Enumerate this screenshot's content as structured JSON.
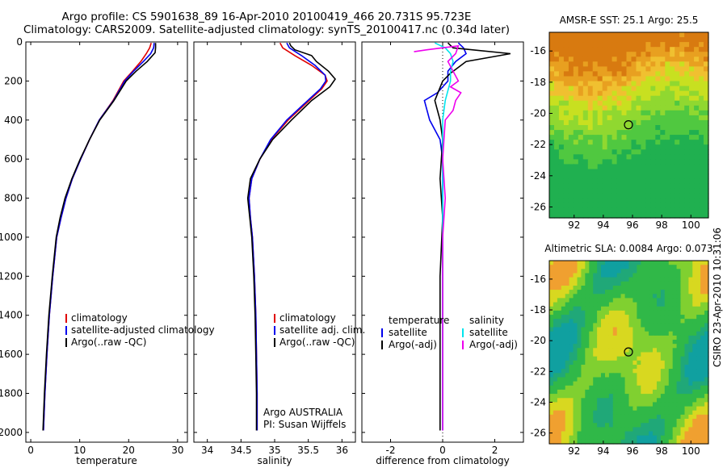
{
  "header": {
    "line1": "Argo profile: CS 5901638_89 16-Apr-2010 20100419_466 20.731S 95.723E",
    "line2": "Climatology: CARS2009. Satellite-adjusted climatology: synTS_20100417.nc (0.34d later)"
  },
  "colors": {
    "climatology": "#e00000",
    "satellite": "#0000ee",
    "argo": "#000000",
    "cyan": "#00e5ee",
    "magenta": "#ee00ee"
  },
  "chart_data": [
    {
      "type": "line",
      "xlabel": "temperature",
      "xlim": [
        -1,
        32
      ],
      "ylim": [
        2050,
        0
      ],
      "xticks": [
        0,
        10,
        20,
        30
      ],
      "yticks": [
        0,
        200,
        400,
        600,
        800,
        1000,
        1200,
        1400,
        1600,
        1800,
        2000
      ],
      "legend": [
        "climatology",
        "satellite-adjusted climatology",
        "Argo(..raw -QC)"
      ],
      "legend_position": "lower-right",
      "series": [
        {
          "name": "climatology",
          "color": "climatology",
          "points": [
            [
              24.6,
              5
            ],
            [
              24.3,
              30
            ],
            [
              23.6,
              60
            ],
            [
              22.5,
              100
            ],
            [
              20.8,
              150
            ],
            [
              19.0,
              200
            ],
            [
              16.8,
              300
            ],
            [
              14.0,
              400
            ],
            [
              12.0,
              500
            ],
            [
              10.2,
              600
            ],
            [
              8.5,
              700
            ],
            [
              7.2,
              800
            ],
            [
              6.2,
              900
            ],
            [
              5.3,
              1000
            ],
            [
              4.5,
              1200
            ],
            [
              3.8,
              1400
            ],
            [
              3.3,
              1600
            ],
            [
              2.9,
              1800
            ],
            [
              2.6,
              1990
            ]
          ]
        },
        {
          "name": "satellite-adjusted climatology",
          "color": "satellite",
          "points": [
            [
              25.2,
              5
            ],
            [
              25.1,
              30
            ],
            [
              24.5,
              60
            ],
            [
              23.0,
              100
            ],
            [
              21.0,
              150
            ],
            [
              19.2,
              200
            ],
            [
              16.9,
              300
            ],
            [
              14.0,
              400
            ],
            [
              12.0,
              500
            ],
            [
              10.2,
              600
            ],
            [
              8.5,
              700
            ],
            [
              7.2,
              800
            ],
            [
              6.2,
              900
            ],
            [
              5.3,
              1000
            ],
            [
              4.5,
              1200
            ],
            [
              3.8,
              1400
            ],
            [
              3.3,
              1600
            ],
            [
              2.9,
              1800
            ],
            [
              2.6,
              1990
            ]
          ]
        },
        {
          "name": "Argo(..raw -QC)",
          "color": "argo",
          "points": [
            [
              25.5,
              5
            ],
            [
              25.5,
              30
            ],
            [
              25.4,
              55
            ],
            [
              23.8,
              100
            ],
            [
              21.5,
              150
            ],
            [
              19.5,
              200
            ],
            [
              17.0,
              300
            ],
            [
              14.1,
              400
            ],
            [
              12.0,
              500
            ],
            [
              10.1,
              600
            ],
            [
              8.4,
              700
            ],
            [
              7.0,
              800
            ],
            [
              6.0,
              900
            ],
            [
              5.2,
              1000
            ],
            [
              4.4,
              1200
            ],
            [
              3.7,
              1400
            ],
            [
              3.2,
              1600
            ],
            [
              2.8,
              1800
            ],
            [
              2.5,
              1990
            ]
          ]
        }
      ]
    },
    {
      "type": "line",
      "xlabel": "salinity",
      "xlim": [
        33.8,
        36.2
      ],
      "ylim": [
        2050,
        0
      ],
      "xticks": [
        34,
        34.5,
        35,
        35.5,
        36
      ],
      "xticklabels": [
        "34",
        "34.5",
        "35",
        "35.5",
        "36"
      ],
      "legend": [
        "climatology",
        "satellite adj. clim.",
        "Argo(..raw -QC)"
      ],
      "legend_position": "lower-right",
      "annotation": [
        "Argo AUSTRALIA",
        "PI: Susan Wijffels"
      ],
      "series": [
        {
          "name": "climatology",
          "color": "climatology",
          "points": [
            [
              35.08,
              5
            ],
            [
              35.12,
              30
            ],
            [
              35.3,
              70
            ],
            [
              35.55,
              120
            ],
            [
              35.75,
              170
            ],
            [
              35.78,
              200
            ],
            [
              35.7,
              240
            ],
            [
              35.45,
              320
            ],
            [
              35.2,
              400
            ],
            [
              34.95,
              500
            ],
            [
              34.78,
              600
            ],
            [
              34.66,
              700
            ],
            [
              34.62,
              800
            ],
            [
              34.64,
              900
            ],
            [
              34.67,
              1000
            ],
            [
              34.7,
              1200
            ],
            [
              34.72,
              1400
            ],
            [
              34.73,
              1600
            ],
            [
              34.74,
              1800
            ],
            [
              34.74,
              1990
            ]
          ]
        },
        {
          "name": "satellite adj. clim.",
          "color": "satellite",
          "points": [
            [
              35.18,
              5
            ],
            [
              35.22,
              30
            ],
            [
              35.4,
              70
            ],
            [
              35.6,
              120
            ],
            [
              35.75,
              170
            ],
            [
              35.76,
              200
            ],
            [
              35.68,
              240
            ],
            [
              35.43,
              320
            ],
            [
              35.18,
              400
            ],
            [
              34.94,
              500
            ],
            [
              34.78,
              600
            ],
            [
              34.66,
              700
            ],
            [
              34.62,
              800
            ],
            [
              34.64,
              900
            ],
            [
              34.67,
              1000
            ],
            [
              34.7,
              1200
            ],
            [
              34.72,
              1400
            ],
            [
              34.73,
              1600
            ],
            [
              34.74,
              1800
            ],
            [
              34.74,
              1990
            ]
          ]
        },
        {
          "name": "Argo(..raw -QC)",
          "color": "argo",
          "points": [
            [
              35.22,
              5
            ],
            [
              35.24,
              20
            ],
            [
              35.3,
              40
            ],
            [
              35.55,
              70
            ],
            [
              35.62,
              100
            ],
            [
              35.8,
              150
            ],
            [
              35.9,
              190
            ],
            [
              35.82,
              230
            ],
            [
              35.55,
              300
            ],
            [
              35.25,
              400
            ],
            [
              34.97,
              500
            ],
            [
              34.78,
              600
            ],
            [
              34.64,
              700
            ],
            [
              34.6,
              800
            ],
            [
              34.63,
              900
            ],
            [
              34.66,
              1000
            ],
            [
              34.69,
              1200
            ],
            [
              34.71,
              1400
            ],
            [
              34.72,
              1600
            ],
            [
              34.73,
              1800
            ],
            [
              34.73,
              1990
            ]
          ]
        }
      ]
    },
    {
      "type": "line",
      "xlabel": "difference from climatology",
      "xlim": [
        -3.1,
        3.1
      ],
      "ylim": [
        2050,
        0
      ],
      "xticks": [
        -2,
        0,
        2
      ],
      "legend_groups": [
        {
          "title": "temperature",
          "items": [
            "satellite",
            "Argo(-adj)"
          ]
        },
        {
          "title": "salinity",
          "items": [
            "satellite",
            "Argo(-adj)"
          ]
        }
      ],
      "legend_position": "lower-center",
      "series": [
        {
          "name": "temperature satellite",
          "color": "satellite",
          "points": [
            [
              0.6,
              5
            ],
            [
              0.8,
              30
            ],
            [
              0.9,
              60
            ],
            [
              0.5,
              100
            ],
            [
              0.2,
              150
            ],
            [
              0.2,
              200
            ],
            [
              -0.2,
              260
            ],
            [
              -0.7,
              300
            ],
            [
              -0.5,
              400
            ],
            [
              -0.1,
              500
            ],
            [
              0.0,
              600
            ],
            [
              0.0,
              800
            ],
            [
              0.0,
              1000
            ],
            [
              0.0,
              1990
            ]
          ]
        },
        {
          "name": "temperature Argo(-adj)",
          "color": "argo",
          "points": [
            [
              0.2,
              5
            ],
            [
              0.4,
              30
            ],
            [
              2.6,
              60
            ],
            [
              0.9,
              100
            ],
            [
              0.6,
              130
            ],
            [
              0.3,
              160
            ],
            [
              0.0,
              200
            ],
            [
              -0.3,
              300
            ],
            [
              -0.1,
              400
            ],
            [
              0.0,
              500
            ],
            [
              -0.1,
              700
            ],
            [
              0.0,
              900
            ],
            [
              -0.1,
              1200
            ],
            [
              -0.1,
              1990
            ]
          ]
        },
        {
          "name": "salinity satellite",
          "color": "cyan",
          "points": [
            [
              -0.3,
              5
            ],
            [
              0.1,
              30
            ],
            [
              0.3,
              60
            ],
            [
              0.4,
              100
            ],
            [
              0.3,
              150
            ],
            [
              0.3,
              200
            ],
            [
              0.1,
              300
            ],
            [
              0.0,
              400
            ],
            [
              0.0,
              500
            ],
            [
              0.0,
              800
            ],
            [
              0.0,
              1200
            ],
            [
              0.0,
              1990
            ]
          ]
        },
        {
          "name": "salinity Argo(-adj)",
          "color": "magenta",
          "points": [
            [
              -1.1,
              50
            ],
            [
              -0.6,
              40
            ],
            [
              0.6,
              20
            ],
            [
              0.5,
              60
            ],
            [
              0.2,
              100
            ],
            [
              0.6,
              200
            ],
            [
              0.3,
              230
            ],
            [
              0.7,
              260
            ],
            [
              0.5,
              300
            ],
            [
              0.4,
              350
            ],
            [
              0.1,
              400
            ],
            [
              0.0,
              600
            ],
            [
              0.1,
              800
            ],
            [
              0.0,
              1000
            ],
            [
              0.0,
              1990
            ]
          ]
        }
      ]
    },
    {
      "type": "heatmap",
      "title": "AMSR-E SST: 25.1 Argo: 25.5",
      "xlim": [
        90.3,
        101.2
      ],
      "ylim": [
        -26.7,
        -14.8
      ],
      "xticks": [
        92,
        94,
        96,
        98,
        100
      ],
      "yticks": [
        -16,
        -18,
        -20,
        -22,
        -24,
        -26
      ],
      "marker": {
        "lon": 95.723,
        "lat": -20.731
      }
    },
    {
      "type": "heatmap",
      "title": "Altimetric SLA: 0.0084 Argo: 0.073",
      "xlim": [
        90.3,
        101.2
      ],
      "ylim": [
        -26.7,
        -14.8
      ],
      "xticks": [
        92,
        94,
        96,
        98,
        100
      ],
      "yticks": [
        -16,
        -18,
        -20,
        -22,
        -24,
        -26
      ],
      "marker": {
        "lon": 95.723,
        "lat": -20.731
      }
    }
  ],
  "side_label": "CSIRO 23-Apr-2010 10:31:06"
}
